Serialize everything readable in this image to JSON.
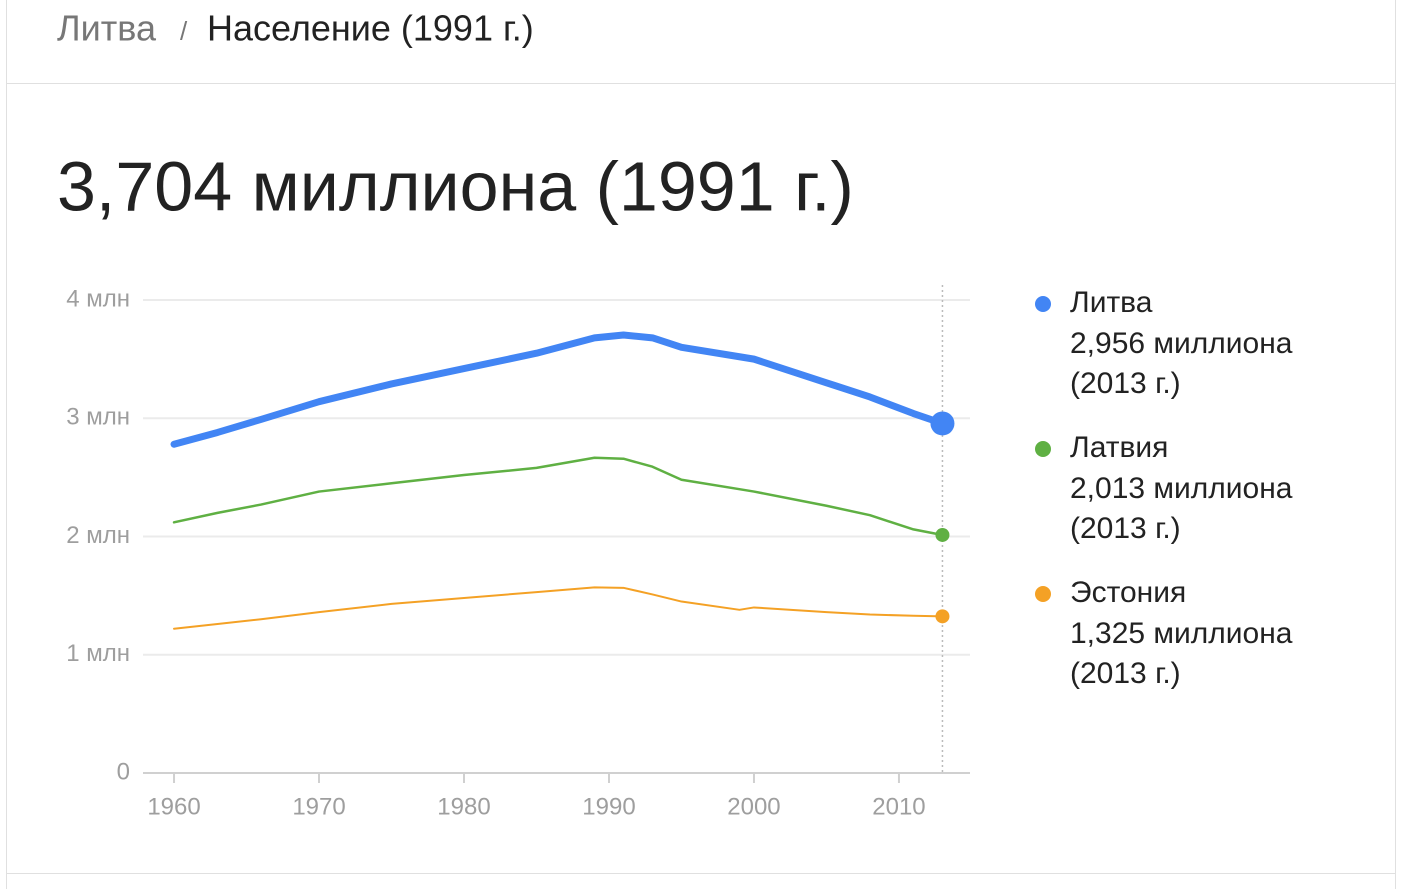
{
  "breadcrumb": [
    "Литва",
    "Население (1991 г.)"
  ],
  "breadcrumb_separator": "/",
  "chart_data": {
    "type": "line",
    "title": "3,704 миллиона (1991 г.)",
    "x": [
      1960,
      1963,
      1966,
      1970,
      1975,
      1980,
      1985,
      1989,
      1991,
      1993,
      1995,
      1999,
      2000,
      2005,
      2008,
      2011,
      2013
    ],
    "series": [
      {
        "name": "Литва",
        "color": "#4285f4",
        "legend_value": "2,956 миллиона",
        "legend_date": "(2013 г.)",
        "values": [
          2.78,
          2.88,
          2.99,
          3.14,
          3.29,
          3.42,
          3.55,
          3.68,
          3.704,
          3.68,
          3.6,
          3.52,
          3.5,
          3.3,
          3.18,
          3.04,
          2.956
        ]
      },
      {
        "name": "Латвия",
        "color": "#5fb043",
        "legend_value": "2,013 миллиона",
        "legend_date": "(2013 г.)",
        "values": [
          2.12,
          2.2,
          2.27,
          2.38,
          2.45,
          2.52,
          2.58,
          2.666,
          2.658,
          2.59,
          2.48,
          2.4,
          2.38,
          2.26,
          2.18,
          2.06,
          2.013
        ]
      },
      {
        "name": "Эстония",
        "color": "#f4a125",
        "legend_value": "1,325 миллиона",
        "legend_date": "(2013 г.)",
        "values": [
          1.22,
          1.26,
          1.3,
          1.36,
          1.43,
          1.48,
          1.53,
          1.57,
          1.566,
          1.51,
          1.45,
          1.38,
          1.4,
          1.36,
          1.34,
          1.33,
          1.325
        ]
      }
    ],
    "xlim": [
      1957.86,
      2014.9
    ],
    "xticks": [
      1960,
      1970,
      1980,
      1990,
      2000,
      2010
    ],
    "ylim": [
      0,
      4
    ],
    "yticks": [
      0,
      {
        "value": 1,
        "label": "1 млн"
      },
      {
        "value": 2,
        "label": "2 млн"
      },
      {
        "value": 3,
        "label": "3 млн"
      },
      {
        "value": 4,
        "label": "4 млн"
      }
    ],
    "grid": true
  }
}
